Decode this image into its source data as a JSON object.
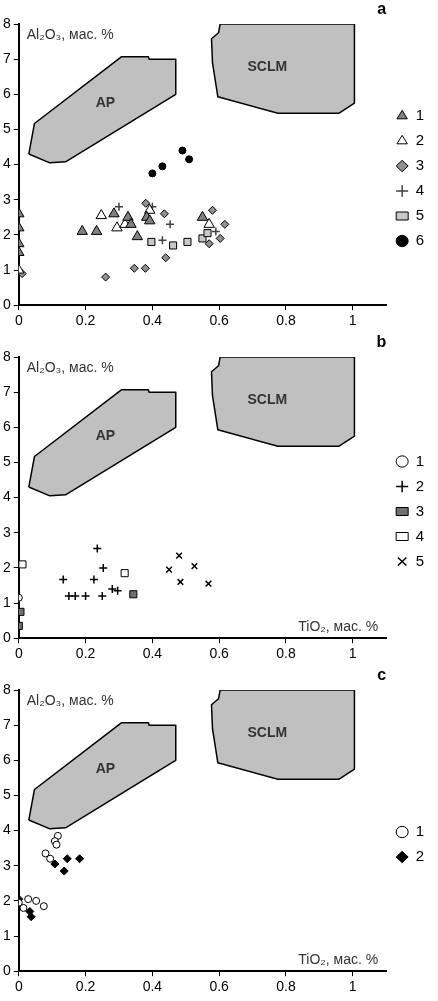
{
  "chart_data": [
    {
      "type": "scatter",
      "title": "a",
      "ylabel": "Al₂O₃, мас. %",
      "xlim": [
        0,
        1.1
      ],
      "ylim": [
        0,
        8
      ],
      "xticks": [
        0,
        0.2,
        0.4,
        0.6,
        0.8,
        1
      ],
      "yticks": [
        0,
        1,
        2,
        3,
        4,
        5,
        6,
        7,
        8
      ],
      "grid": false,
      "legend": "right",
      "series": [
        {
          "name": "AP",
          "type": "area",
          "color": "#c0c0c0",
          "x": [
            0.03,
            0.047,
            0.308,
            0.388,
            0.39,
            0.47,
            0.47,
            0.14,
            0.093,
            0.03
          ],
          "values": [
            4.3,
            5.17,
            7.07,
            7.07,
            7.0,
            7.0,
            6.0,
            4.08,
            4.05,
            4.3
          ]
        },
        {
          "name": "SCLM",
          "type": "area",
          "color": "#c0c0c0",
          "x": [
            0.603,
            0.598,
            0.577,
            0.58,
            0.596,
            0.776,
            0.958,
            1.005,
            1.005,
            0.603
          ],
          "values": [
            8,
            7.75,
            7.58,
            6.9,
            5.93,
            5.46,
            5.46,
            5.75,
            8,
            8
          ]
        },
        {
          "name": "1",
          "marker": "triangle",
          "color": "#808080",
          "x": [
            0,
            0,
            0,
            0,
            0.19,
            0.233,
            0.285,
            0.327,
            0.336,
            0.355,
            0.383,
            0.392,
            0.55
          ],
          "values": [
            2.6,
            2.2,
            1.75,
            1.5,
            2.1,
            2.1,
            2.6,
            2.5,
            2.3,
            1.95,
            2.5,
            2.4,
            2.5
          ]
        },
        {
          "name": "2",
          "marker": "triangle",
          "color": "#ffffff",
          "x": [
            0,
            0.247,
            0.294,
            0.318,
            0.392,
            0.57
          ],
          "values": [
            1.0,
            2.55,
            2.2,
            2.3,
            2.7,
            2.3
          ]
        },
        {
          "name": "3",
          "marker": "diamond",
          "color": "#909090",
          "x": [
            0.01,
            0.26,
            0.346,
            0.379,
            0.44,
            0.38,
            0.436,
            0.58,
            0.617,
            0.603,
            0.57
          ],
          "values": [
            0.9,
            0.8,
            1.05,
            1.05,
            1.35,
            2.9,
            2.6,
            2.7,
            2.3,
            1.9,
            1.75
          ]
        },
        {
          "name": "4",
          "marker": "cross",
          "color": "#404040",
          "x": [
            0.3,
            0.453,
            0.43,
            0.4,
            0.59
          ],
          "values": [
            2.8,
            2.3,
            1.85,
            2.8,
            2.1
          ]
        },
        {
          "name": "5",
          "marker": "square",
          "color": "#c8c8c8",
          "x": [
            0.397,
            0.462,
            0.505,
            0.55,
            0.565
          ],
          "values": [
            1.8,
            1.7,
            1.8,
            1.9,
            2.05
          ]
        },
        {
          "name": "6",
          "marker": "circle",
          "color": "#000000",
          "x": [
            0.4,
            0.43,
            0.49,
            0.51
          ],
          "values": [
            3.75,
            3.95,
            4.4,
            4.15
          ]
        }
      ]
    },
    {
      "type": "scatter",
      "title": "b",
      "ylabel": "Al₂O₃, мас. %",
      "xlabel": "TiO₂, мас. %",
      "xlim": [
        0,
        1.1
      ],
      "ylim": [
        0,
        8
      ],
      "xticks": [
        0,
        0.2,
        0.4,
        0.6,
        0.8,
        1
      ],
      "yticks": [
        0,
        1,
        2,
        3,
        4,
        5,
        6,
        7,
        8
      ],
      "grid": false,
      "legend": "right",
      "series": [
        {
          "name": "AP",
          "type": "area",
          "color": "#c0c0c0",
          "x": [
            0.03,
            0.047,
            0.308,
            0.388,
            0.39,
            0.47,
            0.47,
            0.14,
            0.093,
            0.03
          ],
          "values": [
            4.3,
            5.17,
            7.07,
            7.07,
            7.0,
            7.0,
            6.0,
            4.08,
            4.05,
            4.3
          ]
        },
        {
          "name": "SCLM",
          "type": "area",
          "color": "#c0c0c0",
          "x": [
            0.603,
            0.598,
            0.577,
            0.58,
            0.596,
            0.776,
            0.958,
            1.005,
            1.005,
            0.603
          ],
          "values": [
            8,
            7.75,
            7.58,
            6.9,
            5.93,
            5.46,
            5.46,
            5.75,
            8,
            8
          ]
        },
        {
          "name": "1",
          "marker": "circle",
          "color": "#ffffff",
          "x": [
            0
          ],
          "values": [
            1.15
          ]
        },
        {
          "name": "2",
          "marker": "cross",
          "color": "#000000",
          "x": [
            0.235,
            0.253,
            0.133,
            0.225,
            0.15,
            0.169,
            0.2,
            0.25,
            0.28,
            0.296
          ],
          "values": [
            2.55,
            2.0,
            1.67,
            1.67,
            1.2,
            1.2,
            1.2,
            1.2,
            1.4,
            1.35
          ]
        },
        {
          "name": "3",
          "marker": "square",
          "color": "#707070",
          "x": [
            0.343,
            0.005,
            0
          ],
          "values": [
            1.25,
            0.75,
            0.35
          ]
        },
        {
          "name": "4",
          "marker": "square",
          "color": "#ffffff",
          "x": [
            0.011,
            0.317
          ],
          "values": [
            2.1,
            1.85
          ]
        },
        {
          "name": "5",
          "marker": "x",
          "color": "#000000",
          "x": [
            0.48,
            0.45,
            0.526,
            0.484,
            0.568
          ],
          "values": [
            2.35,
            1.95,
            2.05,
            1.6,
            1.55
          ]
        }
      ]
    },
    {
      "type": "scatter",
      "title": "c",
      "ylabel": "Al₂O₃, мас. %",
      "xlabel": "TiO₂, мас. %",
      "xlim": [
        0,
        1.1
      ],
      "ylim": [
        0,
        8
      ],
      "xticks": [
        0,
        0.2,
        0.4,
        0.6,
        0.8,
        1
      ],
      "yticks": [
        0,
        1,
        2,
        3,
        4,
        5,
        6,
        7,
        8
      ],
      "grid": false,
      "legend": "right",
      "series": [
        {
          "name": "AP",
          "type": "area",
          "color": "#c0c0c0",
          "x": [
            0.03,
            0.047,
            0.308,
            0.388,
            0.39,
            0.47,
            0.47,
            0.14,
            0.093,
            0.03
          ],
          "values": [
            4.3,
            5.17,
            7.07,
            7.07,
            7.0,
            7.0,
            6.0,
            4.08,
            4.05,
            4.3
          ]
        },
        {
          "name": "SCLM",
          "type": "area",
          "color": "#c0c0c0",
          "x": [
            0.603,
            0.598,
            0.577,
            0.58,
            0.596,
            0.776,
            0.958,
            1.005,
            1.005,
            0.603
          ],
          "values": [
            8,
            7.75,
            7.58,
            6.9,
            5.93,
            5.46,
            5.46,
            5.75,
            8,
            8
          ]
        },
        {
          "name": "1",
          "marker": "circle",
          "color": "#ffffff",
          "x": [
            0.117,
            0.108,
            0.113,
            0.08,
            0.094,
            0,
            0.028,
            0.052,
            0.075,
            0.014
          ],
          "values": [
            3.85,
            3.7,
            3.6,
            3.35,
            3.2,
            1.95,
            2.05,
            2.0,
            1.85,
            1.8
          ]
        },
        {
          "name": "2",
          "marker": "diamond",
          "color": "#000000",
          "x": [
            0.108,
            0.145,
            0.182,
            0.136,
            0,
            0.033,
            0.037
          ],
          "values": [
            3.05,
            3.2,
            3.2,
            2.85,
            2.05,
            1.7,
            1.55
          ]
        }
      ]
    }
  ]
}
